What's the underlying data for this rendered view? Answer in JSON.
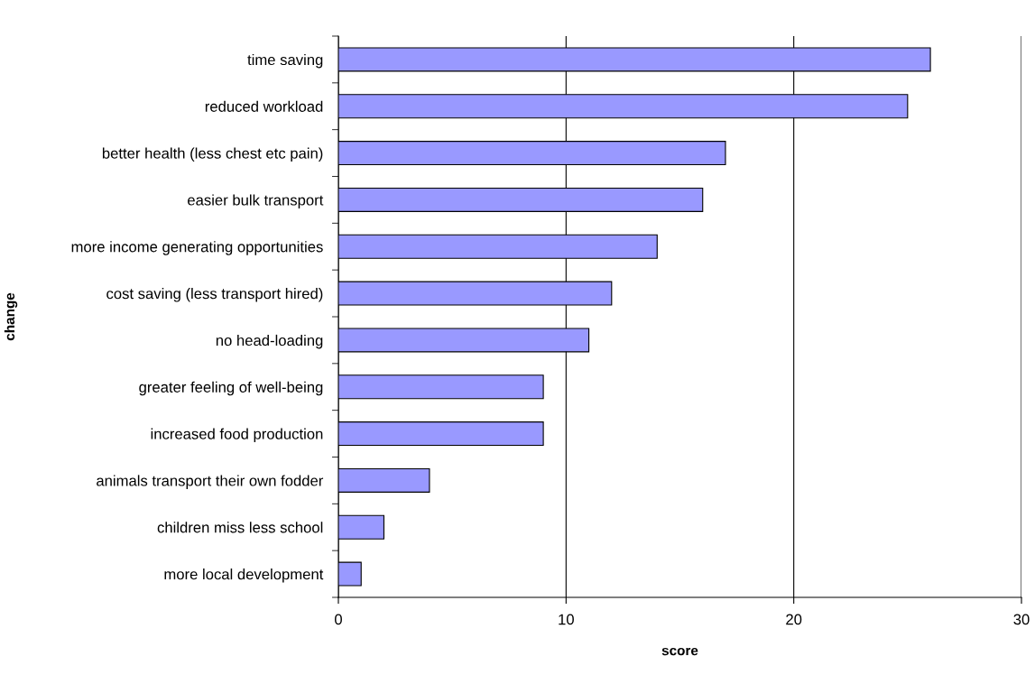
{
  "chart_data": {
    "type": "bar",
    "orientation": "horizontal",
    "xlabel": "score",
    "ylabel": "change",
    "categories": [
      "time saving",
      "reduced workload",
      "better health (less chest etc pain)",
      "easier bulk transport",
      "more income generating opportunities",
      "cost saving (less transport hired)",
      "no head-loading",
      "greater feeling of well-being",
      "increased food production",
      "animals transport their own fodder",
      "children miss less school",
      "more local development"
    ],
    "values": [
      26,
      25,
      17,
      16,
      14,
      12,
      11,
      9,
      9,
      4,
      2,
      1
    ],
    "color": "#9999ff",
    "xlim": [
      0,
      30
    ],
    "xticks": [
      0,
      10,
      20,
      30
    ],
    "grid": "x"
  }
}
